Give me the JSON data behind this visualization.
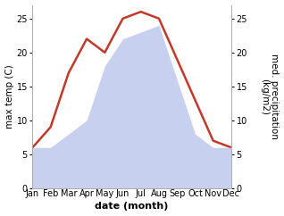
{
  "months": [
    "Jan",
    "Feb",
    "Mar",
    "Apr",
    "May",
    "Jun",
    "Jul",
    "Aug",
    "Sep",
    "Oct",
    "Nov",
    "Dec"
  ],
  "x": [
    1,
    2,
    3,
    4,
    5,
    6,
    7,
    8,
    9,
    10,
    11,
    12
  ],
  "temp": [
    6,
    9,
    17,
    22,
    20,
    25,
    26,
    25,
    19,
    13,
    7,
    6
  ],
  "precip": [
    6,
    6,
    8,
    10,
    18,
    22,
    23,
    24,
    16,
    8,
    6,
    6
  ],
  "temp_color": "#c0392b",
  "precip_fill_color": "#c8d0f0",
  "temp_ylim": [
    0,
    27
  ],
  "precip_ylim": [
    0,
    27
  ],
  "xlabel": "date (month)",
  "ylabel_left": "max temp (C)",
  "ylabel_right": "med. precipitation\n(kg/m2)",
  "left_yticks": [
    0,
    5,
    10,
    15,
    20,
    25
  ],
  "right_yticks": [
    0,
    5,
    10,
    15,
    20,
    25
  ],
  "label_fontsize": 7.5,
  "tick_fontsize": 7,
  "xlabel_fontsize": 8,
  "linewidth": 1.8,
  "bg_color": "#ffffff"
}
